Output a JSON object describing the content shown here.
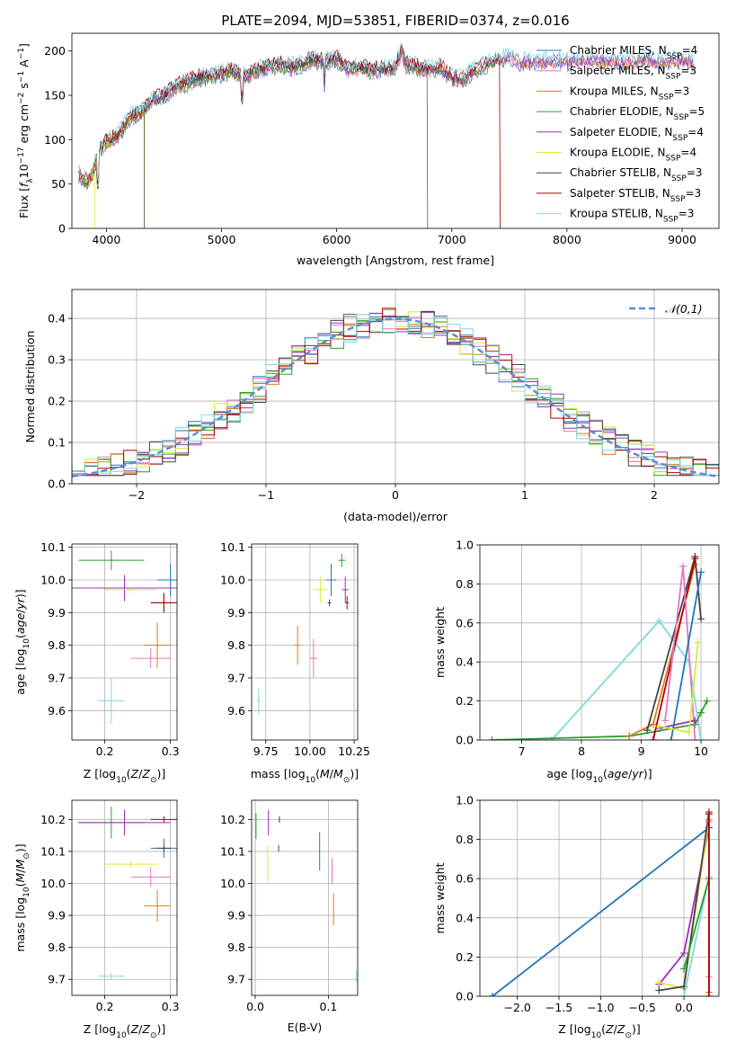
{
  "chart_data": [
    {
      "id": "spectrum",
      "type": "line",
      "title": "PLATE=2094, MJD=53851, FIBERID=0374, z=0.016",
      "xlabel": "wavelength [Angstrom, rest frame]",
      "ylabel": "Flux [f_λ 10^-17 erg cm^-2 s^-1 A^-1]",
      "xlim": [
        3700,
        9320
      ],
      "ylim": [
        0,
        220
      ],
      "xticks": [
        4000,
        5000,
        6000,
        7000,
        8000,
        9000
      ],
      "yticks": [
        0,
        50,
        100,
        150,
        200
      ],
      "grid": false,
      "legend_position": "top-right",
      "legend": [
        {
          "label": "Chabrier MILES, N_SSP=4",
          "color": "#1f77b4"
        },
        {
          "label": "Salpeter MILES, N_SSP=3",
          "color": "#e377c2"
        },
        {
          "label": "Kroupa MILES, N_SSP=3",
          "color": "#d67e22"
        },
        {
          "label": "Chabrier ELODIE, N_SSP=5",
          "color": "#2ca02c"
        },
        {
          "label": "Salpeter ELODIE, N_SSP=4",
          "color": "#9b30b8"
        },
        {
          "label": "Kroupa ELODIE, N_SSP=4",
          "color": "#dce83a"
        },
        {
          "label": "Chabrier STELIB, N_SSP=3",
          "color": "#444444"
        },
        {
          "label": "Salpeter STELIB, N_SSP=3",
          "color": "#b00000"
        },
        {
          "label": "Kroupa STELIB, N_SSP=3",
          "color": "#7fd8e0"
        }
      ],
      "series": [
        {
          "points": [
            [
              3760,
              62
            ],
            [
              3800,
              55
            ],
            [
              3850,
              52
            ],
            [
              3900,
              70
            ],
            [
              3950,
              90
            ],
            [
              4000,
              98
            ],
            [
              4100,
              105
            ],
            [
              4200,
              125
            ],
            [
              4300,
              130
            ],
            [
              4400,
              145
            ],
            [
              4500,
              150
            ],
            [
              4600,
              160
            ],
            [
              4700,
              165
            ],
            [
              4800,
              170
            ],
            [
              4900,
              172
            ],
            [
              5000,
              175
            ],
            [
              5100,
              178
            ],
            [
              5200,
              170
            ],
            [
              5300,
              178
            ],
            [
              5400,
              182
            ],
            [
              5500,
              185
            ],
            [
              5600,
              182
            ],
            [
              5700,
              186
            ],
            [
              5800,
              190
            ],
            [
              5900,
              188
            ],
            [
              6000,
              192
            ],
            [
              6100,
              180
            ],
            [
              6200,
              182
            ],
            [
              6300,
              178
            ],
            [
              6400,
              180
            ],
            [
              6500,
              180
            ],
            [
              6563,
              200
            ],
            [
              6600,
              186
            ],
            [
              6700,
              182
            ],
            [
              6800,
              180
            ],
            [
              6900,
              182
            ],
            [
              7000,
              170
            ],
            [
              7100,
              168
            ],
            [
              7200,
              180
            ],
            [
              7300,
              185
            ],
            [
              7400,
              190
            ],
            [
              7500,
              195
            ],
            [
              7600,
              188
            ],
            [
              7700,
              190
            ],
            [
              7800,
              188
            ],
            [
              7900,
              190
            ],
            [
              8000,
              188
            ],
            [
              8100,
              190
            ],
            [
              8200,
              192
            ],
            [
              8300,
              190
            ],
            [
              8400,
              190
            ],
            [
              8500,
              188
            ],
            [
              8600,
              190
            ],
            [
              8700,
              192
            ],
            [
              8800,
              188
            ],
            [
              8900,
              190
            ],
            [
              9000,
              190
            ],
            [
              9100,
              188
            ]
          ]
        }
      ],
      "cutoffs": [
        3900,
        4330,
        6790,
        7420
      ]
    },
    {
      "id": "residuals",
      "type": "line",
      "xlabel": "(data-model)/error",
      "ylabel": "Normed distribution",
      "xlim": [
        -2.5,
        2.5
      ],
      "ylim": [
        0,
        0.47
      ],
      "xticks": [
        -2,
        -1,
        0,
        1,
        2
      ],
      "yticks": [
        0.0,
        0.1,
        0.2,
        0.3,
        0.4
      ],
      "grid": true,
      "legend_position": "top-right",
      "legend": [
        {
          "label": "𝒩(0,1)",
          "color": "#5b8dd9"
        }
      ],
      "gaussian": {
        "mean": 0,
        "sigma": 1
      }
    },
    {
      "id": "age_vs_z",
      "type": "scatter",
      "xlabel": "Z [log10(Z/Z⊙)]",
      "ylabel": "age [log10(age/yr)]",
      "xlim": [
        0.15,
        0.31
      ],
      "ylim": [
        9.51,
        10.11
      ],
      "xticks": [
        0.2,
        0.3
      ],
      "yticks": [
        9.6,
        9.7,
        9.8,
        9.9,
        10.0,
        10.1
      ],
      "grid": true,
      "points": [
        {
          "x": 0.3,
          "y": 10.0,
          "xerr": 0.02,
          "yerr": 0.05,
          "color": "#1f77b4"
        },
        {
          "x": 0.21,
          "y": 10.06,
          "xerr": 0.05,
          "yerr": 0.03,
          "color": "#2ca02c"
        },
        {
          "x": 0.23,
          "y": 9.975,
          "xerr": 0.08,
          "yerr": 0.04,
          "color": "#9b30b8"
        },
        {
          "x": 0.24,
          "y": 9.97,
          "xerr": 0.04,
          "yerr": 0.01,
          "color": "#dce83a"
        },
        {
          "x": 0.29,
          "y": 9.93,
          "xerr": 0.02,
          "yerr": 0.03,
          "color": "#444444"
        },
        {
          "x": 0.29,
          "y": 9.93,
          "xerr": 0.02,
          "yerr": 0.03,
          "color": "#b00000"
        },
        {
          "x": 0.28,
          "y": 9.8,
          "xerr": 0.02,
          "yerr": 0.07,
          "color": "#d67e22"
        },
        {
          "x": 0.27,
          "y": 9.76,
          "xerr": 0.03,
          "yerr": 0.03,
          "color": "#e377c2"
        },
        {
          "x": 0.21,
          "y": 9.63,
          "xerr": 0.02,
          "yerr": 0.07,
          "color": "#7fd8e0"
        }
      ]
    },
    {
      "id": "age_vs_mass",
      "type": "scatter",
      "xlabel": "mass [log10(M/M⊙)]",
      "ylabel": "",
      "xlim": [
        9.67,
        10.27
      ],
      "ylim": [
        9.51,
        10.11
      ],
      "xticks": [
        9.75,
        10.0,
        10.25
      ],
      "yticks": [
        9.6,
        9.7,
        9.8,
        9.9,
        10.0,
        10.1
      ],
      "grid": true,
      "points": [
        {
          "x": 10.12,
          "y": 10.0,
          "xerr": 0.03,
          "yerr": 0.05,
          "color": "#1f77b4"
        },
        {
          "x": 10.18,
          "y": 10.06,
          "xerr": 0.02,
          "yerr": 0.02,
          "color": "#2ca02c"
        },
        {
          "x": 10.2,
          "y": 9.97,
          "xerr": 0.02,
          "yerr": 0.04,
          "color": "#9b30b8"
        },
        {
          "x": 10.06,
          "y": 9.97,
          "xerr": 0.04,
          "yerr": 0.04,
          "color": "#dce83a"
        },
        {
          "x": 10.11,
          "y": 9.93,
          "xerr": 0.01,
          "yerr": 0.01,
          "color": "#444444"
        },
        {
          "x": 10.21,
          "y": 9.93,
          "xerr": 0.01,
          "yerr": 0.02,
          "color": "#b00000"
        },
        {
          "x": 9.93,
          "y": 9.8,
          "xerr": 0.02,
          "yerr": 0.06,
          "color": "#d67e22"
        },
        {
          "x": 10.02,
          "y": 9.76,
          "xerr": 0.02,
          "yerr": 0.06,
          "color": "#e377c2"
        },
        {
          "x": 9.71,
          "y": 9.63,
          "xerr": 0.01,
          "yerr": 0.04,
          "color": "#7fd8e0"
        }
      ]
    },
    {
      "id": "massweight_vs_age",
      "type": "line",
      "xlabel": "age [log10(age/yr)]",
      "ylabel": "mass weight",
      "xlim": [
        6.3,
        10.3
      ],
      "ylim": [
        0,
        1.0
      ],
      "xticks": [
        7,
        8,
        9,
        10
      ],
      "yticks": [
        0.0,
        0.2,
        0.4,
        0.6,
        0.8,
        1.0
      ],
      "grid": true,
      "series": [
        {
          "color": "#7fd8e0",
          "points": [
            [
              7.5,
              0.0
            ],
            [
              9.3,
              0.61
            ],
            [
              9.8,
              0.4
            ],
            [
              10.0,
              0.0
            ]
          ]
        },
        {
          "color": "#2ca02c",
          "points": [
            [
              6.5,
              0.0
            ],
            [
              8.8,
              0.02
            ],
            [
              9.9,
              0.08
            ],
            [
              10.0,
              0.14
            ],
            [
              10.1,
              0.2
            ]
          ]
        },
        {
          "color": "#d67e22",
          "points": [
            [
              8.8,
              0.02
            ],
            [
              9.2,
              0.08
            ],
            [
              9.9,
              0.9
            ]
          ]
        },
        {
          "color": "#444444",
          "points": [
            [
              9.1,
              0.05
            ],
            [
              9.9,
              0.94
            ],
            [
              10.0,
              0.62
            ]
          ]
        },
        {
          "color": "#b00000",
          "points": [
            [
              9.2,
              0.0
            ],
            [
              9.9,
              0.93
            ]
          ]
        },
        {
          "color": "#e377c2",
          "points": [
            [
              9.4,
              0.1
            ],
            [
              9.7,
              0.89
            ],
            [
              9.9,
              0.0
            ]
          ]
        },
        {
          "color": "#1f77b4",
          "points": [
            [
              9.5,
              0.0
            ],
            [
              10.0,
              0.86
            ]
          ]
        },
        {
          "color": "#9b30b8",
          "points": [
            [
              9.3,
              0.06
            ],
            [
              9.9,
              0.1
            ]
          ]
        },
        {
          "color": "#dce83a",
          "points": [
            [
              9.3,
              0.07
            ],
            [
              9.8,
              0.04
            ],
            [
              9.95,
              0.5
            ]
          ]
        }
      ]
    },
    {
      "id": "mass_vs_z",
      "type": "scatter",
      "xlabel": "Z [log10(Z/Z⊙)]",
      "ylabel": "mass [log10(M/M⊙)]",
      "xlim": [
        0.15,
        0.31
      ],
      "ylim": [
        9.65,
        10.26
      ],
      "xticks": [
        0.2,
        0.3
      ],
      "yticks": [
        9.7,
        9.8,
        9.9,
        10.0,
        10.1,
        10.2
      ],
      "grid": true,
      "points": [
        {
          "x": 0.29,
          "y": 10.11,
          "xerr": 0.02,
          "yerr": 0.03,
          "color": "#1f77b4"
        },
        {
          "x": 0.21,
          "y": 10.19,
          "xerr": 0.05,
          "yerr": 0.05,
          "color": "#2ca02c"
        },
        {
          "x": 0.23,
          "y": 10.19,
          "xerr": 0.07,
          "yerr": 0.04,
          "color": "#9b30b8"
        },
        {
          "x": 0.24,
          "y": 10.06,
          "xerr": 0.04,
          "yerr": 0.01,
          "color": "#dce83a"
        },
        {
          "x": 0.29,
          "y": 10.11,
          "xerr": 0.01,
          "yerr": 0.01,
          "color": "#444444"
        },
        {
          "x": 0.29,
          "y": 10.2,
          "xerr": 0.02,
          "yerr": 0.01,
          "color": "#b00000"
        },
        {
          "x": 0.28,
          "y": 9.93,
          "xerr": 0.02,
          "yerr": 0.05,
          "color": "#d67e22"
        },
        {
          "x": 0.27,
          "y": 10.02,
          "xerr": 0.03,
          "yerr": 0.03,
          "color": "#e377c2"
        },
        {
          "x": 0.21,
          "y": 9.71,
          "xerr": 0.02,
          "yerr": 0.01,
          "color": "#7fd8e0"
        }
      ]
    },
    {
      "id": "mass_vs_ebv",
      "type": "scatter",
      "xlabel": "E(B-V)",
      "ylabel": "",
      "xlim": [
        -0.005,
        0.14
      ],
      "ylim": [
        9.65,
        10.26
      ],
      "xticks": [
        0.0,
        0.1
      ],
      "yticks": [
        9.7,
        9.8,
        9.9,
        10.0,
        10.1,
        10.2
      ],
      "grid": true,
      "points": [
        {
          "x": 0.088,
          "y": 10.1,
          "xerr": 0.0,
          "yerr": 0.06,
          "color": "#1f77b4"
        },
        {
          "x": 0.001,
          "y": 10.18,
          "xerr": 0.0,
          "yerr": 0.04,
          "color": "#2ca02c"
        },
        {
          "x": 0.018,
          "y": 10.19,
          "xerr": 0.0,
          "yerr": 0.04,
          "color": "#9b30b8"
        },
        {
          "x": 0.017,
          "y": 10.06,
          "xerr": 0.0,
          "yerr": 0.06,
          "color": "#dce83a"
        },
        {
          "x": 0.032,
          "y": 10.11,
          "xerr": 0.0,
          "yerr": 0.01,
          "color": "#444444"
        },
        {
          "x": 0.033,
          "y": 10.2,
          "xerr": 0.0,
          "yerr": 0.01,
          "color": "#b00000"
        },
        {
          "x": 0.107,
          "y": 9.92,
          "xerr": 0.0,
          "yerr": 0.05,
          "color": "#d67e22"
        },
        {
          "x": 0.105,
          "y": 10.04,
          "xerr": 0.0,
          "yerr": 0.04,
          "color": "#e377c2"
        },
        {
          "x": 0.138,
          "y": 9.71,
          "xerr": 0.0,
          "yerr": 0.02,
          "color": "#7fd8e0"
        }
      ]
    },
    {
      "id": "massweight_vs_z",
      "type": "line",
      "xlabel": "Z [log10(Z/Z⊙)]",
      "ylabel": "mass weight",
      "xlim": [
        -2.45,
        0.42
      ],
      "ylim": [
        0,
        1.0
      ],
      "xticks": [
        -2.0,
        -1.5,
        -1.0,
        -0.5,
        0.0
      ],
      "yticks": [
        0.0,
        0.2,
        0.4,
        0.6,
        0.8,
        1.0
      ],
      "grid": true,
      "series": [
        {
          "color": "#1f77b4",
          "points": [
            [
              -2.3,
              0.0
            ],
            [
              0.3,
              0.86
            ]
          ]
        },
        {
          "color": "#9b30b8",
          "points": [
            [
              -0.3,
              0.06
            ],
            [
              0.0,
              0.22
            ],
            [
              0.3,
              0.86
            ]
          ]
        },
        {
          "color": "#dce83a",
          "points": [
            [
              -0.3,
              0.07
            ],
            [
              0.0,
              0.04
            ],
            [
              0.3,
              0.9
            ]
          ]
        },
        {
          "color": "#444444",
          "points": [
            [
              -0.3,
              0.03
            ],
            [
              0.0,
              0.05
            ],
            [
              0.3,
              0.94
            ]
          ]
        },
        {
          "color": "#7fd8e0",
          "points": [
            [
              0.0,
              0.0
            ],
            [
              0.3,
              0.61
            ]
          ]
        },
        {
          "color": "#2ca02c",
          "points": [
            [
              0.0,
              0.14
            ],
            [
              0.3,
              0.6
            ]
          ]
        },
        {
          "color": "#e377c2",
          "points": [
            [
              0.3,
              0.1
            ],
            [
              0.3,
              0.89
            ]
          ]
        },
        {
          "color": "#d67e22",
          "points": [
            [
              0.3,
              0.02
            ],
            [
              0.3,
              0.9
            ]
          ]
        },
        {
          "color": "#b00000",
          "points": [
            [
              0.3,
              0.0
            ],
            [
              0.3,
              0.93
            ]
          ]
        }
      ]
    }
  ]
}
